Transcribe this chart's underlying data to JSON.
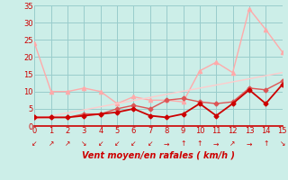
{
  "x": [
    0,
    1,
    2,
    3,
    4,
    5,
    6,
    7,
    8,
    9,
    10,
    11,
    12,
    13,
    14,
    15
  ],
  "series_dark": [
    2.5,
    2.5,
    2.5,
    3.0,
    3.5,
    4.0,
    5.0,
    3.0,
    2.5,
    3.5,
    6.5,
    3.0,
    6.5,
    10.5,
    6.5,
    12.0
  ],
  "series_med": [
    2.5,
    2.5,
    2.5,
    3.5,
    3.5,
    5.0,
    6.0,
    5.0,
    7.5,
    8.0,
    7.0,
    6.5,
    7.0,
    11.0,
    10.5,
    13.0
  ],
  "series_spike": [
    24.0,
    10.0,
    10.0,
    11.0,
    10.0,
    6.5,
    8.5,
    7.5,
    7.5,
    7.0,
    16.0,
    18.5,
    15.5,
    34.0,
    28.0,
    21.5
  ],
  "series_trend": [
    2.0,
    2.9,
    3.8,
    4.7,
    5.6,
    6.5,
    7.4,
    8.3,
    9.2,
    10.1,
    11.0,
    11.9,
    12.8,
    13.7,
    14.6,
    15.5
  ],
  "color_dark": "#cc0000",
  "color_med": "#dd5555",
  "color_spike": "#ffaaaa",
  "color_trend": "#ffcccc",
  "bg_color": "#cceee8",
  "grid_color": "#99cccc",
  "xlabel": "Vent moyen/en rafales ( km/h )",
  "ylim": [
    0,
    35
  ],
  "xlim": [
    0,
    15
  ],
  "yticks": [
    0,
    5,
    10,
    15,
    20,
    25,
    30,
    35
  ],
  "xticks": [
    0,
    1,
    2,
    3,
    4,
    5,
    6,
    7,
    8,
    9,
    10,
    11,
    12,
    13,
    14,
    15
  ],
  "wind_arrows": [
    "↙",
    "↗",
    "↗",
    "↘",
    "↙",
    "↙",
    "↙",
    "↙",
    "→",
    "↑",
    "↑",
    "→",
    "↗",
    "→",
    "↑",
    "↘"
  ],
  "linewidth": 1.0,
  "markersize": 2.5,
  "label_fontsize": 6.0,
  "xlabel_fontsize": 7.0
}
